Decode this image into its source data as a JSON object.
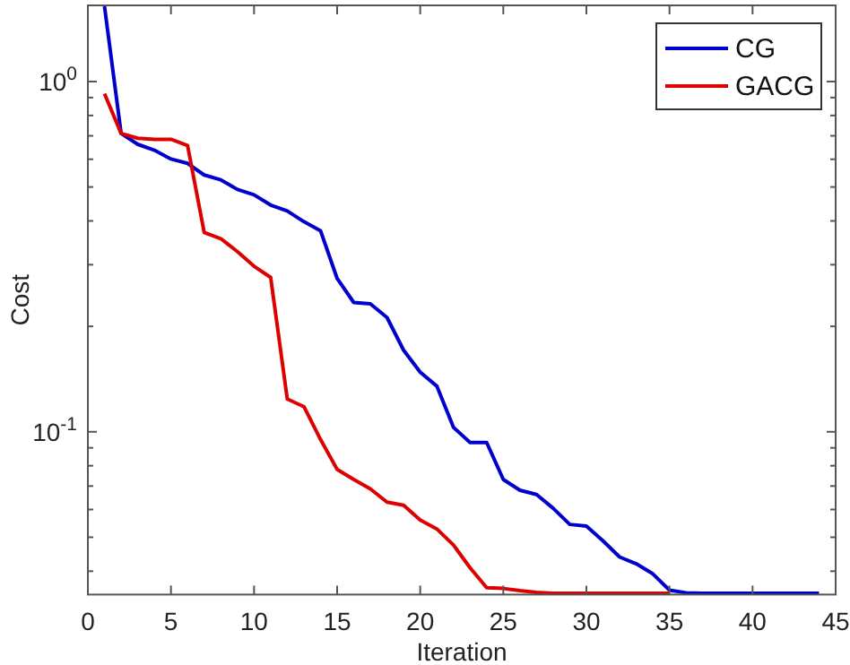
{
  "chart_data": {
    "type": "line",
    "xlabel": "Iteration",
    "ylabel": "Cost",
    "log": "y",
    "grid": false,
    "legend": "top right",
    "marker": "none",
    "line_style": "solid",
    "xlim": [
      0,
      45
    ],
    "xticks": [
      0,
      5,
      10,
      15,
      20,
      25,
      30,
      35,
      40,
      45
    ],
    "ylim": [
      0.0343,
      1.65
    ],
    "yticks": [
      {
        "value": 0.04,
        "label": null
      },
      {
        "value": 0.05,
        "label": null
      },
      {
        "value": 0.06,
        "label": null
      },
      {
        "value": 0.07,
        "label": null
      },
      {
        "value": 0.08,
        "label": null
      },
      {
        "value": 0.09,
        "label": null
      },
      {
        "value": 0.1,
        "label": "10$^{-1}$"
      },
      {
        "value": 0.2,
        "label": null
      },
      {
        "value": 0.3,
        "label": null
      },
      {
        "value": 0.4,
        "label": null
      },
      {
        "value": 0.5,
        "label": null
      },
      {
        "value": 0.6,
        "label": null
      },
      {
        "value": 0.7,
        "label": null
      },
      {
        "value": 0.8,
        "label": null
      },
      {
        "value": 0.9,
        "label": null
      },
      {
        "value": 1,
        "label": "10$^{0}$"
      }
    ],
    "series": [
      {
        "name": "CG",
        "color": "#0000cc",
        "x": [
          1,
          2,
          3,
          4,
          5,
          6,
          7,
          8,
          9,
          10,
          11,
          12,
          13,
          14,
          15,
          16,
          17,
          18,
          19,
          20,
          21,
          22,
          23,
          24,
          25,
          26,
          27,
          28,
          29,
          30,
          31,
          32,
          33,
          34,
          35,
          36,
          37,
          38,
          39,
          40,
          41,
          42,
          43,
          44
        ],
        "values": [
          1.64,
          0.711,
          0.662,
          0.637,
          0.601,
          0.584,
          0.541,
          0.524,
          0.492,
          0.475,
          0.444,
          0.427,
          0.398,
          0.375,
          0.274,
          0.234,
          0.232,
          0.212,
          0.171,
          0.148,
          0.135,
          0.103,
          0.0932,
          0.0932,
          0.0731,
          0.0681,
          0.0662,
          0.0605,
          0.0544,
          0.0538,
          0.0488,
          0.0439,
          0.042,
          0.0393,
          0.0353,
          0.0347,
          0.0346,
          0.0346,
          0.0346,
          0.0346,
          0.0346,
          0.0346,
          0.0346,
          0.0346
        ]
      },
      {
        "name": "GACG",
        "color": "#dd0000",
        "x": [
          1,
          2,
          3,
          4,
          5,
          6,
          7,
          8,
          9,
          10,
          11,
          12,
          13,
          14,
          15,
          16,
          17,
          18,
          19,
          20,
          21,
          22,
          23,
          24,
          25,
          26,
          27,
          28,
          29,
          30,
          31,
          32,
          33,
          34,
          35
        ],
        "values": [
          0.924,
          0.711,
          0.689,
          0.684,
          0.684,
          0.657,
          0.371,
          0.356,
          0.327,
          0.297,
          0.276,
          0.124,
          0.118,
          0.0951,
          0.0781,
          0.0731,
          0.0687,
          0.063,
          0.0617,
          0.056,
          0.0528,
          0.0475,
          0.0409,
          0.0359,
          0.0357,
          0.0352,
          0.0348,
          0.0346,
          0.0346,
          0.0346,
          0.0346,
          0.0346,
          0.0346,
          0.0346,
          0.0346
        ]
      }
    ]
  }
}
